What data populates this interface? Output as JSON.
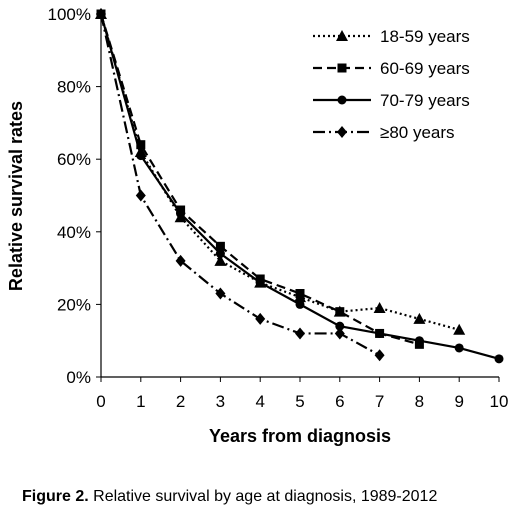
{
  "chart_data": {
    "type": "line",
    "xlabel": "Years from diagnosis",
    "ylabel": "Relative survival rates",
    "xlim": [
      0,
      10
    ],
    "ylim": [
      0,
      100
    ],
    "x_ticks": [
      0,
      1,
      2,
      3,
      4,
      5,
      6,
      7,
      8,
      9,
      10
    ],
    "y_ticks": [
      "0%",
      "20%",
      "40%",
      "60%",
      "80%",
      "100%"
    ],
    "grid": false,
    "legend_position": "top-right",
    "series": [
      {
        "name": "18-59 years",
        "marker": "triangle",
        "dash": "dotted",
        "x": [
          0,
          1,
          2,
          3,
          4,
          5,
          6,
          7,
          8,
          9
        ],
        "y": [
          100,
          62,
          44,
          32,
          26,
          22,
          18,
          19,
          16,
          13
        ]
      },
      {
        "name": "60-69 years",
        "marker": "square",
        "dash": "dashed",
        "x": [
          0,
          1,
          2,
          3,
          4,
          5,
          6,
          7,
          8
        ],
        "y": [
          100,
          64,
          46,
          36,
          27,
          23,
          18,
          12,
          9
        ]
      },
      {
        "name": "70-79 years",
        "marker": "circle",
        "dash": "solid",
        "x": [
          0,
          1,
          2,
          3,
          4,
          5,
          6,
          7,
          8,
          9,
          10
        ],
        "y": [
          100,
          61,
          45,
          34,
          26,
          20,
          14,
          12,
          10,
          8,
          5
        ]
      },
      {
        "name": "≥80 years",
        "marker": "diamond",
        "dash": "dashdot",
        "x": [
          0,
          1,
          2,
          3,
          4,
          5,
          6,
          7
        ],
        "y": [
          100,
          50,
          32,
          23,
          16,
          12,
          12,
          6
        ]
      }
    ]
  },
  "caption": {
    "lead": "Figure 2.",
    "text": " Relative survival by age at diagnosis, 1989-2012"
  },
  "colors": {
    "ink": "#000000",
    "background": "#ffffff"
  }
}
